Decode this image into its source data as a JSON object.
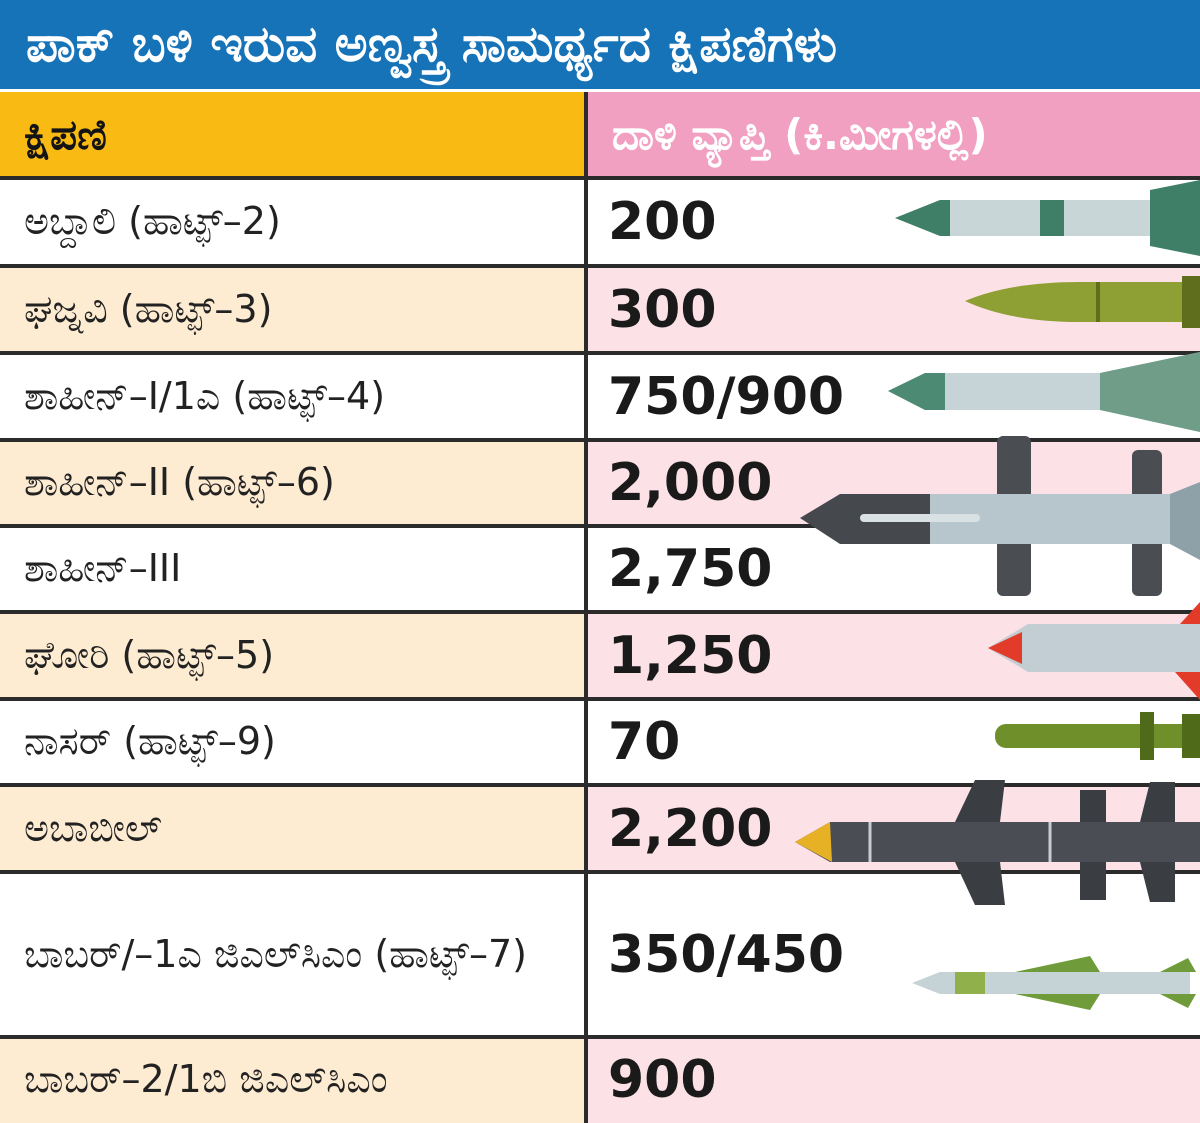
{
  "title": "ಪಾಕ್ ಬಳಿ ಇರುವ ಅಣ್ವಸ್ತ್ರ ಸಾಮರ್ಥ್ಯದ ಕ್ಷಿಪಣಿಗಳು",
  "colors": {
    "title_bg": "#1773b8",
    "header_left_bg": "#f9bb13",
    "header_right_bg": "#f2a0c2",
    "row_alt_left": "#fdebd2",
    "row_alt_right": "#fce1e7",
    "row_plain": "#ffffff",
    "rule": "#2b2b2b"
  },
  "chart_data": {
    "type": "table",
    "title": "ಪಾಕ್ ಬಳಿ ಇರುವ ಅಣ್ವಸ್ತ್ರ ಸಾಮರ್ಥ್ಯದ ಕ್ಷಿಪಣಿಗಳು",
    "columns": [
      "ಕ್ಷಿಪಣಿ",
      "ದಾಳಿ ವ್ಯಾಪ್ತಿ (ಕಿ.ಮೀಗಳಲ್ಲಿ)"
    ],
    "rows": [
      {
        "name": "ಅಬ್ದಾಲಿ (ಹಾಟ್ಫ್–2)",
        "range": "200",
        "missile_icon": "green-short-missile-icon"
      },
      {
        "name": "ಘಜ್ನವಿ (ಹಾಟ್ಫ್–3)",
        "range": "300",
        "missile_icon": "olive-missile-icon"
      },
      {
        "name": "ಶಾಹೀನ್–I/1ಎ (ಹಾಟ್ಫ್–4)",
        "range": "750/900",
        "missile_icon": "silver-missile-icon"
      },
      {
        "name": "ಶಾಹೀನ್–II (ಹಾಟ್ಫ್–6)",
        "range": "2,000",
        "missile_icon": "grey-finned-missile-icon"
      },
      {
        "name": "ಶಾಹೀನ್–III",
        "range": "2,750",
        "missile_icon": "grey-finned-missile-icon"
      },
      {
        "name": "ಘೋರಿ (ಹಾಟ್ಫ್–5)",
        "range": "1,250",
        "missile_icon": "red-finned-missile-icon"
      },
      {
        "name": "ನಾಸರ್ (ಹಾಟ್ಫ್–9)",
        "range": "70",
        "missile_icon": "green-slim-missile-icon"
      },
      {
        "name": "ಅಬಾಬೀಲ್",
        "range": "2,200",
        "missile_icon": "black-cruise-missile-icon"
      },
      {
        "name": "ಬಾಬರ್/–1ಎ ಜಿಎಲ್‌ಸಿಎಂ (ಹಾಟ್ಫ್–7)",
        "range": "350/450",
        "missile_icon": "cruise-missile-icon"
      },
      {
        "name": "ಬಾಬರ್–2/1ಬಿ ಜಿಎಲ್‌ಸಿಎಂ",
        "range": "900",
        "missile_icon": ""
      }
    ]
  }
}
